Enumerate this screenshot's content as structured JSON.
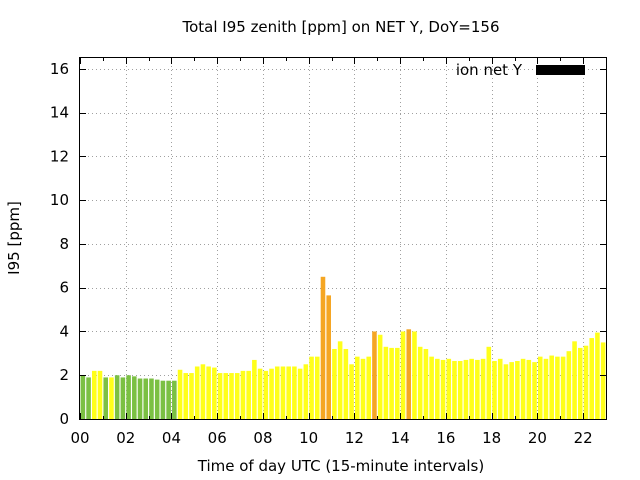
{
  "chart_data": {
    "type": "bar",
    "title": "Total I95 zenith [ppm] on NET Y, DoY=156",
    "xlabel": "Time of day UTC (15-minute intervals)",
    "ylabel": "I95 [ppm]",
    "xlim": [
      0,
      23
    ],
    "ylim": [
      0,
      16.5
    ],
    "xticks": [
      "00",
      "02",
      "04",
      "06",
      "08",
      "10",
      "12",
      "14",
      "16",
      "18",
      "20",
      "22"
    ],
    "yticks": [
      "0",
      "2",
      "4",
      "6",
      "8",
      "10",
      "12",
      "14",
      "16"
    ],
    "grid": true,
    "legend": {
      "label": "ion net Y",
      "color": "#000000",
      "position": "top-right"
    },
    "interval_hours": 0.25,
    "colors": {
      "green": "#7bc043",
      "yellow": "#ffff1a",
      "orange": "#f5a623"
    },
    "series": [
      {
        "values": [
          2.0,
          1.9,
          2.2,
          2.2,
          1.9,
          1.9,
          2.0,
          1.9,
          2.0,
          1.95,
          1.85,
          1.85,
          1.85,
          1.8,
          1.75,
          1.75,
          1.75,
          2.25,
          2.1,
          2.1,
          2.4,
          2.5,
          2.4,
          2.35,
          2.1,
          2.1,
          2.1,
          2.1,
          2.2,
          2.2,
          2.7,
          2.3,
          2.2,
          2.3,
          2.4,
          2.4,
          2.4,
          2.4,
          2.3,
          2.5,
          2.85,
          2.85,
          6.5,
          5.65,
          3.2,
          3.55,
          3.2,
          2.5,
          2.85,
          2.75,
          2.85,
          4.0,
          3.85,
          3.3,
          3.25,
          3.25,
          4.0,
          4.1,
          4.0,
          3.3,
          3.2,
          2.85,
          2.75,
          2.7,
          2.75,
          2.65,
          2.65,
          2.7,
          2.75,
          2.7,
          2.75,
          3.3,
          2.65,
          2.75,
          2.5,
          2.6,
          2.65,
          2.75,
          2.7,
          2.6,
          2.85,
          2.75,
          2.9,
          2.85,
          2.85,
          3.1,
          3.55,
          3.25,
          3.35,
          3.7,
          3.95,
          3.5
        ],
        "levels": [
          "green",
          "green",
          "yellow",
          "yellow",
          "green",
          "yellow",
          "green",
          "green",
          "green",
          "green",
          "green",
          "green",
          "green",
          "green",
          "green",
          "green",
          "green",
          "yellow",
          "yellow",
          "yellow",
          "yellow",
          "yellow",
          "yellow",
          "yellow",
          "yellow",
          "yellow",
          "yellow",
          "yellow",
          "yellow",
          "yellow",
          "yellow",
          "yellow",
          "yellow",
          "yellow",
          "yellow",
          "yellow",
          "yellow",
          "yellow",
          "yellow",
          "yellow",
          "yellow",
          "yellow",
          "orange",
          "orange",
          "yellow",
          "yellow",
          "yellow",
          "yellow",
          "yellow",
          "yellow",
          "yellow",
          "orange",
          "yellow",
          "yellow",
          "yellow",
          "yellow",
          "yellow",
          "orange",
          "yellow",
          "yellow",
          "yellow",
          "yellow",
          "yellow",
          "yellow",
          "yellow",
          "yellow",
          "yellow",
          "yellow",
          "yellow",
          "yellow",
          "yellow",
          "yellow",
          "yellow",
          "yellow",
          "yellow",
          "yellow",
          "yellow",
          "yellow",
          "yellow",
          "yellow",
          "yellow",
          "yellow",
          "yellow",
          "yellow",
          "yellow",
          "yellow",
          "yellow",
          "yellow",
          "yellow",
          "yellow",
          "yellow",
          "yellow"
        ]
      }
    ]
  }
}
